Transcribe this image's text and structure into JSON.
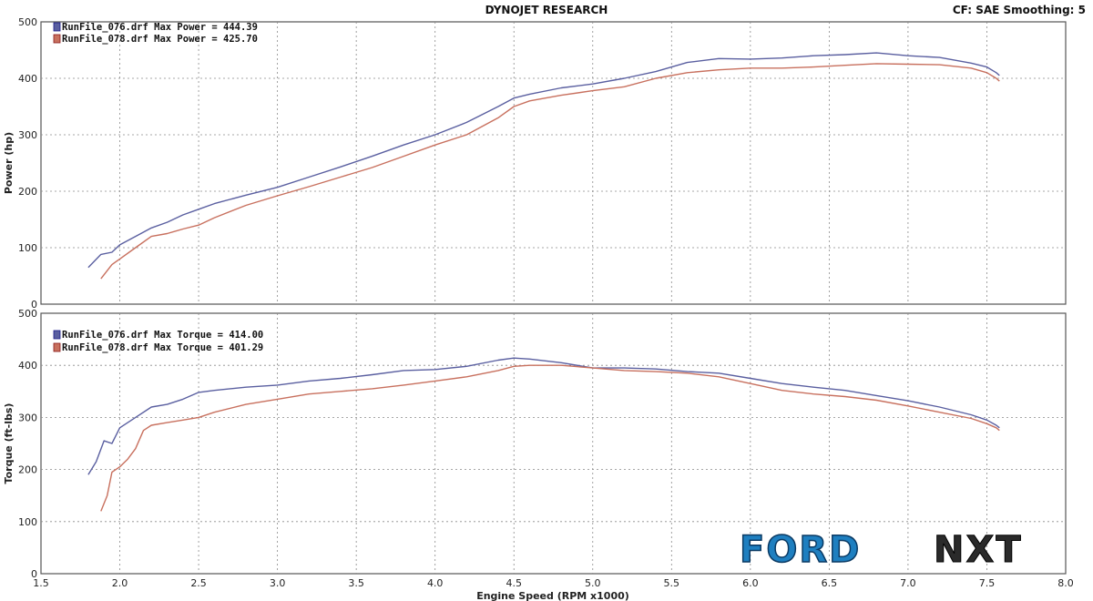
{
  "header": {
    "title": "DYNOJET RESEARCH",
    "settings": "CF: SAE  Smoothing: 5"
  },
  "colors": {
    "run076": "#5a5fa0",
    "run078": "#c8705e",
    "grid": "#8a8a8a",
    "frame": "#555555"
  },
  "logo": {
    "text_left": "FORD",
    "text_right": "NXT"
  },
  "chart_data": [
    {
      "type": "line",
      "title": "",
      "xlabel": "Engine Speed (RPM x1000)",
      "ylabel": "Power (hp)",
      "xlim": [
        1.5,
        8.0
      ],
      "ylim": [
        0,
        500
      ],
      "xticks": [
        "1.5",
        "2.0",
        "2.5",
        "3.0",
        "3.5",
        "4.0",
        "4.5",
        "5.0",
        "5.5",
        "6.0",
        "6.5",
        "7.0",
        "7.5",
        "8.0"
      ],
      "yticks": [
        "0",
        "100",
        "200",
        "300",
        "400",
        "500"
      ],
      "grid": true,
      "legend_position": "top-left",
      "series": [
        {
          "name": "RunFile_076.drf Max Power = 444.39",
          "x": [
            1.8,
            1.88,
            1.95,
            2.0,
            2.1,
            2.2,
            2.3,
            2.4,
            2.5,
            2.6,
            2.8,
            3.0,
            3.2,
            3.4,
            3.6,
            3.8,
            4.0,
            4.2,
            4.4,
            4.5,
            4.6,
            4.8,
            5.0,
            5.2,
            5.4,
            5.6,
            5.8,
            6.0,
            6.2,
            6.4,
            6.6,
            6.8,
            7.0,
            7.2,
            7.4,
            7.5,
            7.56,
            7.58
          ],
          "y": [
            65,
            88,
            92,
            105,
            120,
            135,
            145,
            158,
            168,
            178,
            193,
            207,
            225,
            243,
            262,
            282,
            300,
            322,
            350,
            365,
            372,
            383,
            390,
            400,
            412,
            428,
            435,
            434,
            436,
            440,
            442,
            445,
            440,
            437,
            427,
            420,
            410,
            405
          ]
        },
        {
          "name": "RunFile_078.drf Max Power = 425.70",
          "x": [
            1.88,
            1.95,
            2.0,
            2.1,
            2.2,
            2.3,
            2.4,
            2.5,
            2.6,
            2.8,
            3.0,
            3.2,
            3.4,
            3.6,
            3.8,
            4.0,
            4.2,
            4.4,
            4.5,
            4.6,
            4.8,
            5.0,
            5.2,
            5.4,
            5.6,
            5.8,
            6.0,
            6.2,
            6.4,
            6.6,
            6.8,
            7.0,
            7.2,
            7.4,
            7.5,
            7.56,
            7.58
          ],
          "y": [
            45,
            70,
            80,
            100,
            120,
            125,
            133,
            140,
            153,
            175,
            192,
            208,
            225,
            242,
            262,
            282,
            300,
            330,
            350,
            360,
            370,
            378,
            385,
            400,
            410,
            415,
            418,
            418,
            420,
            423,
            426,
            425,
            424,
            418,
            410,
            400,
            395
          ]
        }
      ]
    },
    {
      "type": "line",
      "title": "",
      "xlabel": "Engine Speed (RPM x1000)",
      "ylabel": "Torque (ft-lbs)",
      "xlim": [
        1.5,
        8.0
      ],
      "ylim": [
        0,
        500
      ],
      "xticks": [
        "1.5",
        "2.0",
        "2.5",
        "3.0",
        "3.5",
        "4.0",
        "4.5",
        "5.0",
        "5.5",
        "6.0",
        "6.5",
        "7.0",
        "7.5",
        "8.0"
      ],
      "yticks": [
        "0",
        "100",
        "200",
        "300",
        "400",
        "500"
      ],
      "grid": true,
      "legend_position": "top-left",
      "series": [
        {
          "name": "RunFile_076.drf Max Torque = 414.00",
          "x": [
            1.8,
            1.85,
            1.9,
            1.95,
            2.0,
            2.1,
            2.2,
            2.3,
            2.4,
            2.5,
            2.6,
            2.8,
            3.0,
            3.2,
            3.4,
            3.6,
            3.8,
            4.0,
            4.2,
            4.4,
            4.5,
            4.6,
            4.8,
            5.0,
            5.2,
            5.4,
            5.6,
            5.8,
            6.0,
            6.2,
            6.4,
            6.6,
            6.8,
            7.0,
            7.2,
            7.4,
            7.5,
            7.56,
            7.58
          ],
          "y": [
            190,
            215,
            255,
            250,
            280,
            300,
            320,
            325,
            335,
            348,
            352,
            358,
            362,
            370,
            375,
            382,
            390,
            392,
            398,
            410,
            414,
            412,
            405,
            395,
            395,
            393,
            388,
            385,
            375,
            365,
            358,
            352,
            342,
            332,
            320,
            305,
            295,
            285,
            280
          ]
        },
        {
          "name": "RunFile_078.drf Max Torque = 401.29",
          "x": [
            1.88,
            1.92,
            1.95,
            2.0,
            2.05,
            2.1,
            2.15,
            2.2,
            2.3,
            2.4,
            2.5,
            2.6,
            2.8,
            3.0,
            3.2,
            3.4,
            3.6,
            3.8,
            4.0,
            4.2,
            4.4,
            4.5,
            4.6,
            4.8,
            5.0,
            5.2,
            5.4,
            5.6,
            5.8,
            6.0,
            6.2,
            6.4,
            6.6,
            6.8,
            7.0,
            7.2,
            7.4,
            7.5,
            7.56,
            7.58
          ],
          "y": [
            120,
            150,
            195,
            205,
            220,
            240,
            275,
            285,
            290,
            295,
            300,
            310,
            325,
            335,
            345,
            350,
            355,
            362,
            370,
            378,
            390,
            398,
            400,
            400,
            395,
            390,
            388,
            385,
            378,
            365,
            352,
            345,
            340,
            333,
            322,
            310,
            298,
            288,
            280,
            275
          ]
        }
      ]
    }
  ]
}
